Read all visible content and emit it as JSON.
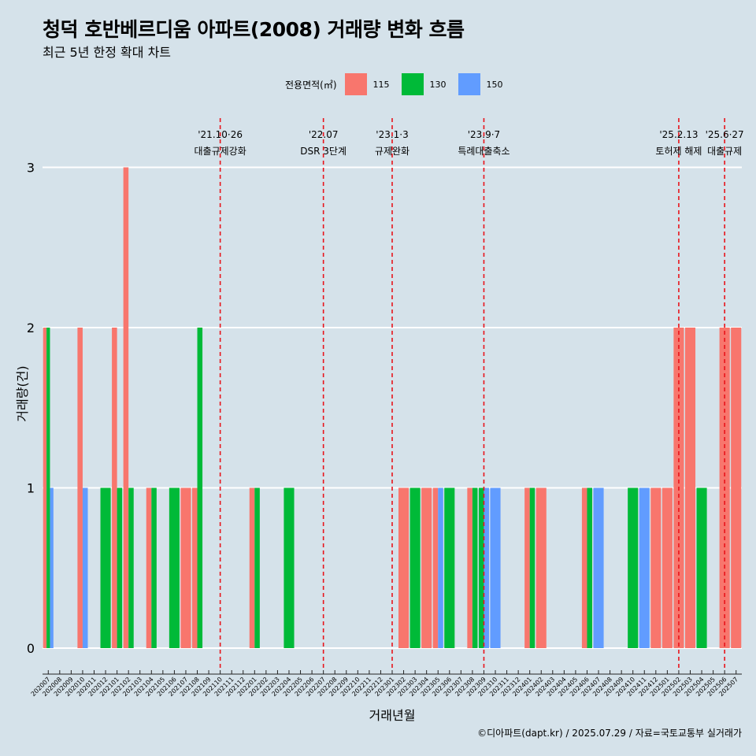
{
  "title": "청덕 호반베르디움 아파트(2008) 거래량 변화 흐름",
  "subtitle": "최근 5년 한정 확대 차트",
  "caption": "©디아파트(dapt.kr) / 2025.07.29 / 자료=국토교통부 실거래가",
  "legend": {
    "title": "전용면적(㎡)",
    "items": [
      {
        "label": "115",
        "color": "#f8766d"
      },
      {
        "label": "130",
        "color": "#00ba38"
      },
      {
        "label": "150",
        "color": "#619cff"
      }
    ]
  },
  "chart_data": {
    "type": "bar",
    "xlabel": "거래년월",
    "ylabel": "거래량(건)",
    "ylim": [
      0,
      3
    ],
    "yticks": [
      0,
      1,
      2,
      3
    ],
    "grid": true,
    "legend_position": "top",
    "categories": [
      "202007",
      "202008",
      "202009",
      "202010",
      "202011",
      "202012",
      "202101",
      "202102",
      "202103",
      "202104",
      "202105",
      "202106",
      "202107",
      "202108",
      "202109",
      "202110",
      "202111",
      "202112",
      "202201",
      "202202",
      "202203",
      "202204",
      "202205",
      "202206",
      "202207",
      "202208",
      "202209",
      "202210",
      "202211",
      "202212",
      "202301",
      "202302",
      "202303",
      "202304",
      "202305",
      "202306",
      "202307",
      "202308",
      "202309",
      "202310",
      "202311",
      "202312",
      "202401",
      "202402",
      "202403",
      "202404",
      "202405",
      "202406",
      "202407",
      "202408",
      "202409",
      "202410",
      "202411",
      "202412",
      "202501",
      "202502",
      "202503",
      "202504",
      "202505",
      "202506",
      "202507"
    ],
    "series": [
      {
        "name": "115",
        "color": "#f8766d",
        "values": [
          2,
          0,
          0,
          2,
          0,
          0,
          2,
          3,
          0,
          1,
          0,
          0,
          1,
          1,
          0,
          0,
          0,
          0,
          1,
          0,
          0,
          0,
          0,
          0,
          0,
          0,
          0,
          0,
          0,
          0,
          0,
          1,
          0,
          1,
          1,
          0,
          0,
          1,
          0,
          0,
          0,
          0,
          1,
          1,
          0,
          0,
          0,
          1,
          0,
          0,
          0,
          0,
          0,
          1,
          1,
          2,
          2,
          0,
          0,
          2,
          2
        ]
      },
      {
        "name": "130",
        "color": "#00ba38",
        "values": [
          2,
          0,
          0,
          0,
          0,
          1,
          1,
          1,
          0,
          1,
          0,
          1,
          0,
          2,
          0,
          0,
          0,
          0,
          1,
          0,
          0,
          1,
          0,
          0,
          0,
          0,
          0,
          0,
          0,
          0,
          0,
          0,
          1,
          0,
          0,
          1,
          0,
          1,
          1,
          0,
          0,
          0,
          1,
          0,
          0,
          0,
          0,
          1,
          0,
          0,
          0,
          1,
          0,
          0,
          0,
          0,
          0,
          1,
          0,
          0,
          0
        ]
      },
      {
        "name": "150",
        "color": "#619cff",
        "values": [
          1,
          0,
          0,
          1,
          0,
          0,
          0,
          0,
          0,
          0,
          0,
          0,
          0,
          0,
          0,
          0,
          0,
          0,
          0,
          0,
          0,
          0,
          0,
          0,
          0,
          0,
          0,
          0,
          0,
          0,
          0,
          0,
          0,
          0,
          1,
          0,
          0,
          0,
          1,
          1,
          0,
          0,
          0,
          0,
          0,
          0,
          0,
          0,
          1,
          0,
          0,
          0,
          1,
          0,
          0,
          0,
          0,
          0,
          0,
          0,
          0
        ]
      }
    ],
    "events": [
      {
        "category": "202110",
        "date": "'21.10·26",
        "label": "대출규제강화"
      },
      {
        "category": "202207",
        "date": "'22.07",
        "label": "DSR 3단계"
      },
      {
        "category": "202301",
        "date": "'23.1·3",
        "label": "규제완화"
      },
      {
        "category": "202309",
        "date": "'23.9·7",
        "label": "특례대출축소"
      },
      {
        "category": "202502",
        "date": "'25.2.13",
        "label": "토허제 해제"
      },
      {
        "category": "202506",
        "date": "'25.6·27",
        "label": "대출규제"
      }
    ]
  }
}
